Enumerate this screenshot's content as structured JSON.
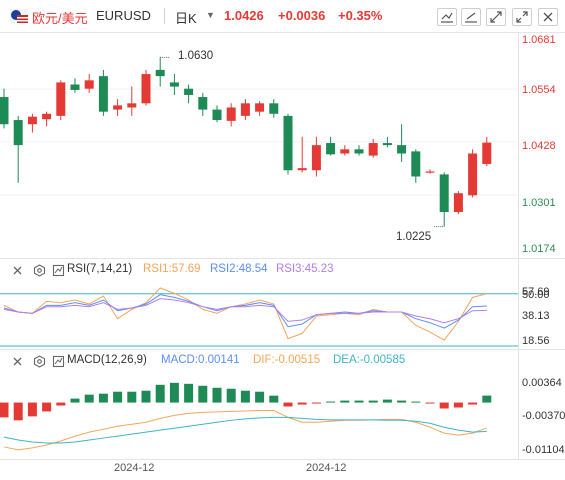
{
  "header": {
    "symbol_name": "欧元/美元",
    "symbol_code": "EURUSD",
    "period": "日K",
    "price": "1.0426",
    "change": "+0.0036",
    "change_pct": "+0.35%",
    "toolbar": [
      "draw-tool-icon",
      "draw-line-icon",
      "fullscreen-icon",
      "expand-icon",
      "close-icon"
    ]
  },
  "price_axis": [
    "1.0681",
    "1.0554",
    "1.0428",
    "1.0301",
    "1.0174"
  ],
  "annotations": {
    "high": "1.0630",
    "low": "1.0225"
  },
  "rsi": {
    "title": "RSI(7,14,21)",
    "rsi1": "RSI1:57.69",
    "rsi2": "RSI2:48.54",
    "rsi3": "RSI3:45.23",
    "axis": [
      "57.69",
      "50.00",
      "38.13",
      "18.56"
    ]
  },
  "macd": {
    "title": "MACD(12,26,9)",
    "macd": "MACD:0.00141",
    "dif": "DIF:-0.00515",
    "dea": "DEA:-0.00585",
    "axis": [
      "0.00364",
      "-0.00370",
      "-0.01104"
    ]
  },
  "x_axis": [
    "2024-12",
    "2024-12"
  ],
  "colors": {
    "up": "#e53935",
    "down": "#1e8a55",
    "rsi1": "#f5a65b",
    "rsi2": "#5b8ff9",
    "rsi3": "#b37feb",
    "dif": "#f5a65b",
    "dea": "#3fb4c8",
    "axis_up": "#e53935",
    "axis_down": "#2e8b57"
  },
  "chart_data": {
    "type": "candlestick",
    "ylim": [
      1.0174,
      1.0681
    ],
    "candles": [
      {
        "o": 1.0535,
        "h": 1.0555,
        "l": 1.046,
        "c": 1.047
      },
      {
        "o": 1.048,
        "h": 1.049,
        "l": 1.033,
        "c": 1.042
      },
      {
        "o": 1.047,
        "h": 1.0495,
        "l": 1.045,
        "c": 1.0488
      },
      {
        "o": 1.0482,
        "h": 1.05,
        "l": 1.0465,
        "c": 1.0495
      },
      {
        "o": 1.049,
        "h": 1.0575,
        "l": 1.048,
        "c": 1.057
      },
      {
        "o": 1.0565,
        "h": 1.058,
        "l": 1.0545,
        "c": 1.0552
      },
      {
        "o": 1.0555,
        "h": 1.059,
        "l": 1.0545,
        "c": 1.0575
      },
      {
        "o": 1.0585,
        "h": 1.06,
        "l": 1.049,
        "c": 1.05
      },
      {
        "o": 1.0505,
        "h": 1.053,
        "l": 1.049,
        "c": 1.0515
      },
      {
        "o": 1.051,
        "h": 1.056,
        "l": 1.049,
        "c": 1.052
      },
      {
        "o": 1.052,
        "h": 1.06,
        "l": 1.0515,
        "c": 1.059
      },
      {
        "o": 1.06,
        "h": 1.063,
        "l": 1.056,
        "c": 1.0585
      },
      {
        "o": 1.057,
        "h": 1.059,
        "l": 1.054,
        "c": 1.056
      },
      {
        "o": 1.0555,
        "h": 1.0565,
        "l": 1.052,
        "c": 1.054
      },
      {
        "o": 1.0535,
        "h": 1.0545,
        "l": 1.049,
        "c": 1.0505
      },
      {
        "o": 1.0505,
        "h": 1.0515,
        "l": 1.0475,
        "c": 1.048
      },
      {
        "o": 1.0478,
        "h": 1.052,
        "l": 1.0465,
        "c": 1.051
      },
      {
        "o": 1.049,
        "h": 1.053,
        "l": 1.048,
        "c": 1.052
      },
      {
        "o": 1.05,
        "h": 1.0525,
        "l": 1.049,
        "c": 1.052
      },
      {
        "o": 1.052,
        "h": 1.053,
        "l": 1.0485,
        "c": 1.0495
      },
      {
        "o": 1.049,
        "h": 1.0495,
        "l": 1.035,
        "c": 1.036
      },
      {
        "o": 1.036,
        "h": 1.044,
        "l": 1.0355,
        "c": 1.0365
      },
      {
        "o": 1.036,
        "h": 1.044,
        "l": 1.0345,
        "c": 1.042
      },
      {
        "o": 1.0425,
        "h": 1.044,
        "l": 1.0395,
        "c": 1.0398
      },
      {
        "o": 1.04,
        "h": 1.042,
        "l": 1.0395,
        "c": 1.041
      },
      {
        "o": 1.041,
        "h": 1.042,
        "l": 1.0395,
        "c": 1.04
      },
      {
        "o": 1.0395,
        "h": 1.0435,
        "l": 1.039,
        "c": 1.0425
      },
      {
        "o": 1.0425,
        "h": 1.044,
        "l": 1.0415,
        "c": 1.042
      },
      {
        "o": 1.042,
        "h": 1.047,
        "l": 1.038,
        "c": 1.04
      },
      {
        "o": 1.0405,
        "h": 1.041,
        "l": 1.033,
        "c": 1.0345
      },
      {
        "o": 1.0355,
        "h": 1.0362,
        "l": 1.0352,
        "c": 1.0357
      },
      {
        "o": 1.035,
        "h": 1.0355,
        "l": 1.0225,
        "c": 1.026
      },
      {
        "o": 1.026,
        "h": 1.031,
        "l": 1.0255,
        "c": 1.0305
      },
      {
        "o": 1.03,
        "h": 1.041,
        "l": 1.0295,
        "c": 1.04
      },
      {
        "o": 1.0375,
        "h": 1.044,
        "l": 1.037,
        "c": 1.0426
      }
    ],
    "rsi": {
      "ylim": [
        18.56,
        65
      ],
      "rsi1": [
        49,
        44,
        43,
        52,
        51,
        53,
        50,
        56,
        39,
        46,
        51,
        62,
        58,
        53,
        46,
        43,
        48,
        50,
        53,
        50,
        24,
        28,
        41,
        42,
        43,
        42,
        46,
        44,
        44,
        34,
        29,
        23,
        37,
        55,
        57.69
      ],
      "rsi2": [
        47,
        44,
        43,
        49,
        49,
        51,
        49,
        53,
        45,
        47,
        50,
        57,
        55,
        52,
        48,
        45,
        48,
        49,
        51,
        49,
        33,
        35,
        42,
        43,
        44,
        43,
        45,
        44,
        44,
        39,
        36,
        32,
        38,
        48,
        48.54
      ],
      "rsi3": [
        46,
        44,
        43,
        48,
        48,
        49,
        48,
        51,
        46,
        47,
        49,
        54,
        53,
        51,
        48,
        46,
        48,
        48,
        49,
        48,
        37,
        38,
        42,
        43,
        43,
        43,
        44,
        44,
        44,
        41,
        39,
        36,
        39,
        45,
        45.23
      ]
    },
    "macd": {
      "ylim": [
        -0.01104,
        0.0064
      ],
      "hist": [
        -0.003,
        -0.0036,
        -0.0028,
        -0.0018,
        -0.0006,
        0.0008,
        0.0016,
        0.0018,
        0.0022,
        0.0022,
        0.0024,
        0.0036,
        0.004,
        0.0038,
        0.0034,
        0.003,
        0.0028,
        0.0024,
        0.0022,
        0.0014,
        -0.0008,
        -0.0004,
        -0.0002,
        0.0002,
        0.0004,
        0.0004,
        0.0004,
        0.0006,
        0.0004,
        0.0002,
        -0.0002,
        -0.0012,
        -0.001,
        -0.0004,
        0.00141
      ],
      "dif": [
        -0.009,
        -0.0096,
        -0.0092,
        -0.0086,
        -0.0078,
        -0.0068,
        -0.006,
        -0.0054,
        -0.0048,
        -0.0044,
        -0.004,
        -0.0032,
        -0.0026,
        -0.0022,
        -0.002,
        -0.0019,
        -0.0018,
        -0.0017,
        -0.0016,
        -0.0016,
        -0.003,
        -0.004,
        -0.004,
        -0.0038,
        -0.0036,
        -0.0036,
        -0.0035,
        -0.0034,
        -0.0034,
        -0.004,
        -0.005,
        -0.0062,
        -0.0066,
        -0.0062,
        -0.00515
      ],
      "dea": [
        -0.007,
        -0.0076,
        -0.008,
        -0.0082,
        -0.0082,
        -0.008,
        -0.0076,
        -0.0072,
        -0.0068,
        -0.0064,
        -0.006,
        -0.0056,
        -0.0052,
        -0.0048,
        -0.0044,
        -0.004,
        -0.0036,
        -0.0033,
        -0.0031,
        -0.003,
        -0.003,
        -0.0032,
        -0.0034,
        -0.0035,
        -0.0035,
        -0.0035,
        -0.0035,
        -0.0036,
        -0.0036,
        -0.0038,
        -0.0042,
        -0.005,
        -0.0056,
        -0.006,
        -0.00585
      ]
    }
  }
}
